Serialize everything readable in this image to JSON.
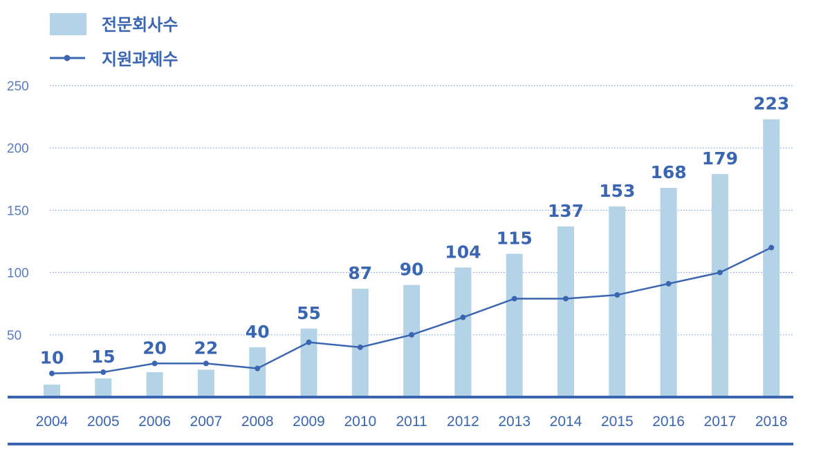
{
  "colors": {
    "bar": "#b5d3e7",
    "line": "#3a65b0",
    "grid": "#7f9fd0",
    "axis": "#3a65b0"
  },
  "chart_data": {
    "type": "bar",
    "title": "",
    "xlabel": "",
    "ylabel": "",
    "ylim": [
      0,
      250
    ],
    "yticks": [
      50,
      100,
      150,
      200,
      250
    ],
    "grid": true,
    "legend_position": "top-left",
    "categories": [
      "2004",
      "2005",
      "2006",
      "2007",
      "2008",
      "2009",
      "2010",
      "2011",
      "2012",
      "2013",
      "2014",
      "2015",
      "2016",
      "2017",
      "2018"
    ],
    "series": [
      {
        "name": "전문회사수",
        "type": "bar",
        "values": [
          10,
          15,
          20,
          22,
          40,
          55,
          87,
          90,
          104,
          115,
          137,
          153,
          168,
          179,
          223
        ],
        "data_labels": true
      },
      {
        "name": "지원과제수",
        "type": "line",
        "values": [
          19,
          20,
          27,
          27,
          23,
          44,
          40,
          50,
          64,
          79,
          79,
          82,
          91,
          100,
          120
        ],
        "data_labels": false
      }
    ]
  }
}
